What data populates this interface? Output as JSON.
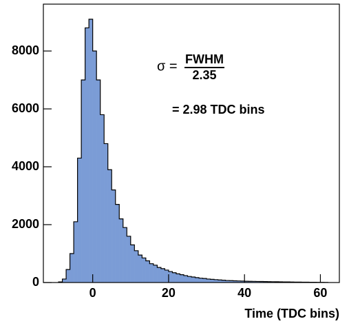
{
  "chart_data": {
    "type": "histogram",
    "xlabel": "Time (TDC bins)",
    "annotations": [
      "σ =",
      "FWHM",
      "2.35",
      "= 2.98 TDC bins"
    ],
    "bins": [
      -9,
      -8,
      -7,
      -6,
      -5,
      -4,
      -3,
      -2,
      -1,
      0,
      1,
      2,
      3,
      4,
      5,
      6,
      7,
      8,
      9,
      10,
      11,
      12,
      13,
      14,
      15,
      16,
      17,
      18,
      19,
      20,
      21,
      22,
      23,
      24,
      25,
      26,
      27,
      28,
      29,
      30,
      31,
      32,
      33,
      34,
      35,
      36,
      37,
      38,
      39,
      40,
      41,
      42,
      43,
      44,
      45,
      46,
      47,
      48,
      49,
      50,
      51,
      52,
      53,
      54,
      55,
      56,
      57,
      58,
      59,
      60,
      61,
      62
    ],
    "counts": [
      20,
      120,
      450,
      1000,
      2100,
      4300,
      7000,
      8800,
      9100,
      8000,
      7000,
      5800,
      4800,
      3900,
      3200,
      2700,
      2200,
      1900,
      1600,
      1300,
      1100,
      950,
      850,
      750,
      650,
      600,
      520,
      480,
      430,
      380,
      340,
      300,
      270,
      240,
      210,
      190,
      170,
      150,
      140,
      120,
      110,
      100,
      90,
      80,
      70,
      65,
      60,
      55,
      50,
      45,
      42,
      40,
      37,
      35,
      32,
      30,
      28,
      26,
      25,
      22,
      20,
      18,
      16,
      15,
      13,
      12,
      10,
      9,
      8,
      6,
      5
    ],
    "color": "#7b9cd6",
    "xlim": [
      -13,
      65
    ],
    "xticks": [
      0,
      20,
      40,
      60
    ],
    "ylim": [
      0,
      9620
    ],
    "yticks": [
      0,
      2000,
      4000,
      6000,
      8000
    ]
  }
}
